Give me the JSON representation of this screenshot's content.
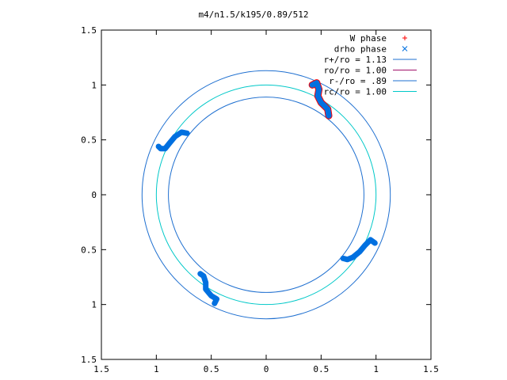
{
  "chart_data": {
    "type": "scatter",
    "title": "m4/n1.5/k195/0.89/512",
    "xlim": [
      -1.5,
      1.5
    ],
    "ylim": [
      -1.5,
      1.5
    ],
    "xticks": [
      -1.5,
      -1,
      -0.5,
      0,
      0.5,
      1,
      1.5
    ],
    "yticks": [
      -1.5,
      -1,
      -0.5,
      0,
      0.5,
      1,
      1.5
    ],
    "xtick_labels": [
      "1.5",
      "1",
      "0.5",
      "0",
      "0.5",
      "1",
      "1.5"
    ],
    "ytick_labels": [
      "1.5",
      "1",
      "0.5",
      "0",
      "0.5",
      "1",
      "1.5"
    ],
    "grid": false,
    "legend_position": "top-right",
    "legend": [
      {
        "label": "W phase",
        "kind": "point",
        "marker": "+",
        "color": "#ff0000"
      },
      {
        "label": "drho phase",
        "kind": "point",
        "marker": "x",
        "color": "#0070e0"
      },
      {
        "label": "r+/ro = 1.13",
        "kind": "line",
        "color": "#1e6fd0"
      },
      {
        "label": "ro/ro = 1.00",
        "kind": "line",
        "color": "#a0106a"
      },
      {
        "label": "r-/ro = .89",
        "kind": "line",
        "color": "#1e6fd0"
      },
      {
        "label": "rc/ro = 1.00",
        "kind": "line",
        "color": "#00c8c8"
      }
    ],
    "circles": [
      {
        "name": "r+/ro = 1.13",
        "radius": 1.13,
        "color": "#1e6fd0"
      },
      {
        "name": "r-/ro = .89",
        "radius": 0.89,
        "color": "#1e6fd0"
      },
      {
        "name": "rc/ro = 1.00",
        "radius": 1.0,
        "color": "#00c8c8"
      }
    ],
    "arms": [
      {
        "points": [
          [
            0.42,
            1.0
          ],
          [
            0.46,
            1.02
          ],
          [
            0.48,
            0.96
          ],
          [
            0.47,
            0.9
          ],
          [
            0.5,
            0.84
          ],
          [
            0.56,
            0.78
          ],
          [
            0.57,
            0.72
          ]
        ]
      },
      {
        "points": [
          [
            -0.98,
            0.44
          ],
          [
            -0.96,
            0.42
          ],
          [
            -0.92,
            0.42
          ],
          [
            -0.88,
            0.47
          ],
          [
            -0.83,
            0.53
          ],
          [
            -0.77,
            0.57
          ],
          [
            -0.72,
            0.56
          ]
        ]
      },
      {
        "points": [
          [
            -0.6,
            -0.72
          ],
          [
            -0.57,
            -0.74
          ],
          [
            -0.55,
            -0.8
          ],
          [
            -0.55,
            -0.86
          ],
          [
            -0.5,
            -0.92
          ],
          [
            -0.45,
            -0.95
          ],
          [
            -0.47,
            -0.99
          ]
        ]
      },
      {
        "points": [
          [
            0.7,
            -0.58
          ],
          [
            0.74,
            -0.59
          ],
          [
            0.79,
            -0.57
          ],
          [
            0.85,
            -0.52
          ],
          [
            0.9,
            -0.46
          ],
          [
            0.95,
            -0.41
          ],
          [
            0.99,
            -0.44
          ]
        ]
      }
    ]
  }
}
